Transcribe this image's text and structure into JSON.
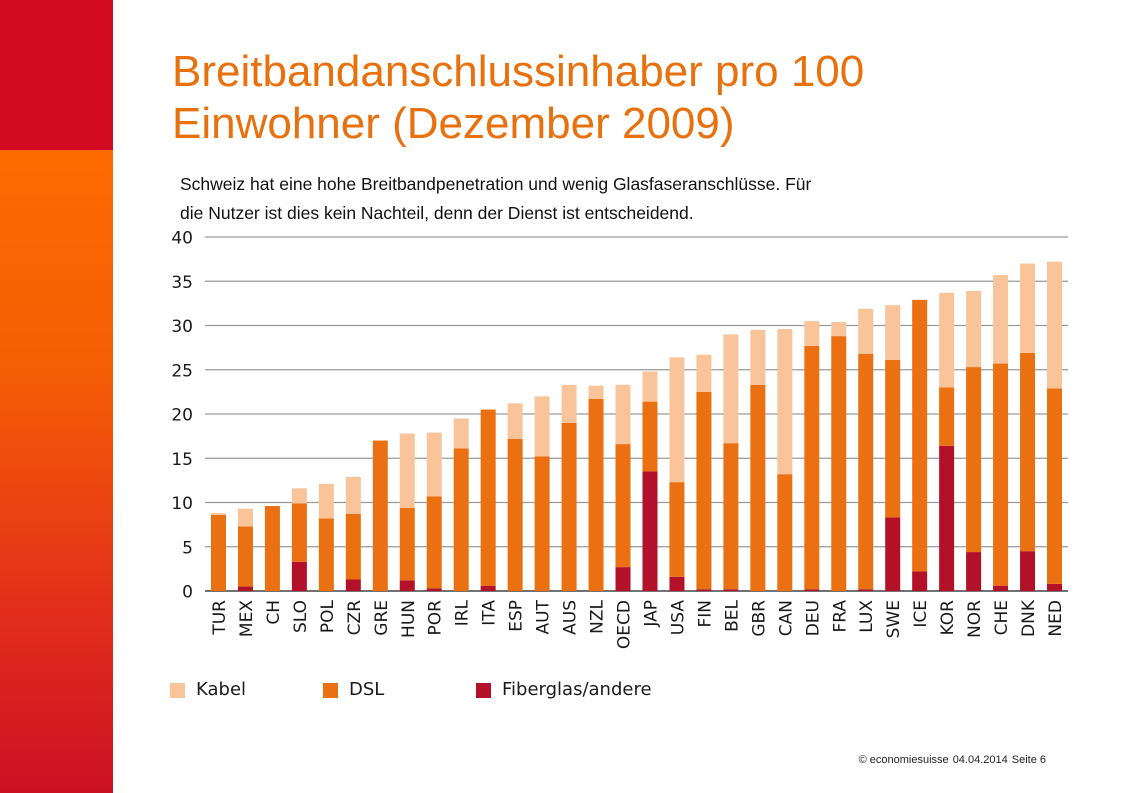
{
  "title_line1": "Breitbandanschlussinhaber pro 100",
  "title_line2": "Einwohner (Dezember 2009)",
  "subtitle_line1": "Schweiz hat eine hohe Breitbandpenetration und wenig Glasfaseranschlüsse. Für",
  "subtitle_line2": "die Nutzer ist dies kein Nachteil, denn der Dienst ist entscheidend.",
  "footer": {
    "copyright": "© economiesuisse",
    "date": "04.04.2014",
    "page": "Seite 6"
  },
  "colors": {
    "sidebar_red": "#d20a22",
    "sidebar_orange": "#ff6a00",
    "title": "#e8710e",
    "kabel": "#f9c49a",
    "dsl": "#ea7011",
    "fiber": "#b3102a"
  },
  "chart_data": {
    "type": "bar",
    "stacked": true,
    "ylim": [
      0,
      40
    ],
    "yticks": [
      0,
      5,
      10,
      15,
      20,
      25,
      30,
      35,
      40
    ],
    "grid": true,
    "legend_position": "bottom",
    "categories": [
      "TUR",
      "MEX",
      "CH",
      "SLO",
      "POL",
      "CZR",
      "GRE",
      "HUN",
      "POR",
      "IRL",
      "ITA",
      "ESP",
      "AUT",
      "AUS",
      "NZL",
      "OECD",
      "JAP",
      "USA",
      "FIN",
      "BEL",
      "GBR",
      "CAN",
      "DEU",
      "FRA",
      "LUX",
      "SWE",
      "ICE",
      "KOR",
      "NOR",
      "CHE",
      "DNK",
      "NED"
    ],
    "series": [
      {
        "name": "Fiberglas/andere",
        "values": [
          0,
          0.5,
          0,
          3.3,
          0,
          1.3,
          0,
          1.2,
          0.3,
          0,
          0.6,
          0,
          0,
          0,
          0,
          2.7,
          13.5,
          1.6,
          0.2,
          0.2,
          0,
          0,
          0.2,
          0,
          0.2,
          8.3,
          2.2,
          16.4,
          4.4,
          0.6,
          4.5,
          0.8
        ]
      },
      {
        "name": "DSL",
        "values": [
          8.6,
          6.8,
          9.6,
          6.6,
          8.2,
          7.4,
          17.0,
          8.2,
          10.4,
          16.1,
          19.9,
          17.2,
          15.2,
          19.0,
          21.7,
          13.9,
          7.9,
          10.7,
          22.3,
          16.5,
          23.3,
          13.2,
          27.5,
          28.8,
          26.6,
          17.8,
          30.7,
          6.6,
          20.9,
          25.1,
          22.4,
          22.1
        ]
      },
      {
        "name": "Kabel",
        "values": [
          0.2,
          2.0,
          0,
          1.7,
          3.9,
          4.2,
          0,
          8.4,
          7.2,
          3.4,
          0,
          4.0,
          6.8,
          4.3,
          1.5,
          6.7,
          3.4,
          14.1,
          4.2,
          12.3,
          6.2,
          16.4,
          2.8,
          1.6,
          5.1,
          6.2,
          0,
          10.7,
          8.6,
          10.0,
          10.1,
          14.3
        ]
      }
    ],
    "legend": [
      "Kabel",
      "DSL",
      "Fiberglas/andere"
    ]
  }
}
